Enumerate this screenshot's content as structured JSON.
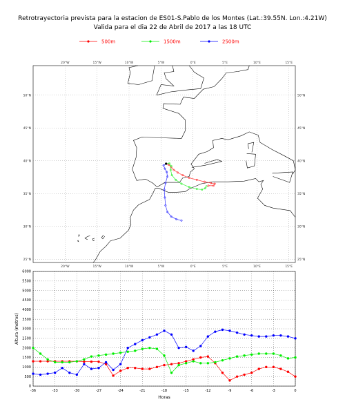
{
  "title_line1": "Retrotrayectoria prevista para la estacion de ES01-S.Pablo de los Montes (Lat.:39.55N. Lon.:4.21W)",
  "title_line2": "Valida para el dia 22 de Abril de 2017 a las 18 UTC",
  "colors": {
    "s500": "#ff0000",
    "s1500": "#00ee00",
    "s2500": "#0000ff",
    "coast": "#000000"
  },
  "map": {
    "lon_ticks": [
      "20°W",
      "15°W",
      "10°W",
      "5°W",
      "0°E",
      "5°E",
      "10°E",
      "15°E"
    ],
    "lat_ticks": [
      "50°N",
      "45°N",
      "40°N",
      "35°N",
      "30°N",
      "25°N"
    ],
    "lon_range": [
      -25,
      16
    ],
    "lat_range": [
      24.5,
      54.5
    ],
    "station": {
      "lon": -4.21,
      "lat": 39.55
    },
    "trajectories": [
      {
        "name": "500m",
        "points": [
          [
            -4.2,
            39.55
          ],
          [
            -3.8,
            39.4
          ],
          [
            -3.4,
            39.0
          ],
          [
            -3.0,
            38.6
          ],
          [
            -2.4,
            38.2
          ],
          [
            -1.6,
            37.8
          ],
          [
            -0.6,
            37.4
          ],
          [
            0.6,
            37.1
          ],
          [
            1.8,
            36.8
          ],
          [
            2.8,
            36.6
          ],
          [
            3.4,
            36.5
          ],
          [
            3.2,
            36.2
          ],
          [
            2.4,
            36.2
          ]
        ]
      },
      {
        "name": "1500m",
        "points": [
          [
            -4.2,
            39.55
          ],
          [
            -3.7,
            39.6
          ],
          [
            -3.4,
            39.2
          ],
          [
            -3.5,
            38.6
          ],
          [
            -3.3,
            37.8
          ],
          [
            -2.7,
            37.1
          ],
          [
            -1.8,
            36.5
          ],
          [
            -0.6,
            36.0
          ],
          [
            0.6,
            35.7
          ],
          [
            1.4,
            35.6
          ],
          [
            1.9,
            35.8
          ],
          [
            2.1,
            36.1
          ]
        ]
      },
      {
        "name": "2500m",
        "points": [
          [
            -4.2,
            39.55
          ],
          [
            -4.6,
            39.3
          ],
          [
            -4.4,
            38.8
          ],
          [
            -4.1,
            38.3
          ],
          [
            -4.0,
            37.6
          ],
          [
            -4.3,
            36.6
          ],
          [
            -4.5,
            35.6
          ],
          [
            -4.4,
            34.4
          ],
          [
            -4.3,
            33.2
          ],
          [
            -4.0,
            32.2
          ],
          [
            -3.4,
            31.5
          ],
          [
            -2.6,
            31.1
          ],
          [
            -1.8,
            30.9
          ]
        ]
      }
    ]
  },
  "chart_data": {
    "type": "line",
    "xlabel": "Horas",
    "ylabel": "Altura (metros)",
    "xlim": [
      -36,
      0
    ],
    "ylim": [
      0,
      6000
    ],
    "x_ticks": [
      -36,
      -33,
      -30,
      -27,
      -24,
      -21,
      -18,
      -15,
      -12,
      -9,
      -6,
      -3,
      0
    ],
    "y_ticks": [
      0,
      500,
      1000,
      1500,
      2000,
      2500,
      3000,
      3500,
      4000,
      4500,
      5000,
      5500,
      6000
    ],
    "legend_position": "top",
    "grid": true,
    "x": [
      -36,
      -35,
      -34,
      -33,
      -32,
      -31,
      -30,
      -29,
      -28,
      -27,
      -26,
      -25,
      -24,
      -23,
      -22,
      -21,
      -20,
      -19,
      -18,
      -17,
      -16,
      -15,
      -14,
      -13,
      -12,
      -11,
      -10,
      -9,
      -8,
      -7,
      -6,
      -5,
      -4,
      -3,
      -2,
      -1,
      0
    ],
    "series": [
      {
        "name": "500m",
        "color": "#ff0000",
        "values": [
          1300,
          1300,
          1300,
          1300,
          1300,
          1300,
          1300,
          1280,
          1280,
          1280,
          1150,
          550,
          800,
          950,
          950,
          900,
          900,
          1000,
          1100,
          1150,
          1200,
          1300,
          1400,
          1500,
          1550,
          1200,
          700,
          300,
          500,
          600,
          700,
          900,
          1000,
          1000,
          900,
          750,
          500
        ]
      },
      {
        "name": "1500m",
        "color": "#00ee00",
        "values": [
          2000,
          1700,
          1400,
          1250,
          1250,
          1250,
          1300,
          1400,
          1550,
          1600,
          1650,
          1700,
          1750,
          1800,
          1850,
          1950,
          2000,
          1950,
          1600,
          700,
          1100,
          1200,
          1300,
          1200,
          1200,
          1250,
          1350,
          1450,
          1550,
          1600,
          1650,
          1700,
          1700,
          1700,
          1600,
          1450,
          1500
        ]
      },
      {
        "name": "2500m",
        "color": "#0000ff",
        "values": [
          650,
          600,
          650,
          700,
          950,
          700,
          600,
          1150,
          900,
          950,
          1250,
          850,
          1150,
          2000,
          2200,
          2400,
          2550,
          2700,
          2900,
          2700,
          2000,
          2050,
          1850,
          2100,
          2600,
          2850,
          2950,
          2900,
          2800,
          2700,
          2650,
          2600,
          2600,
          2650,
          2650,
          2600,
          2500
        ]
      }
    ]
  }
}
